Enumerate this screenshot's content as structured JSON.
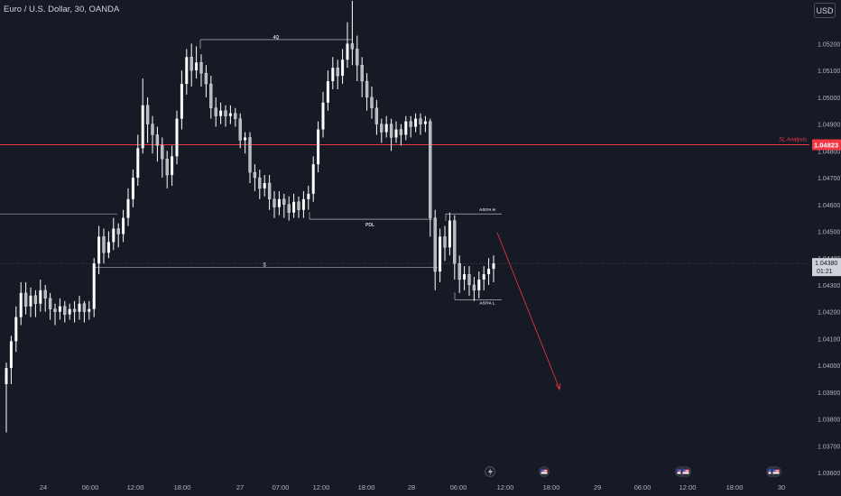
{
  "header": {
    "symbol_title": "Euro / U.S. Dollar, 30, OANDA",
    "currency_button": "USD"
  },
  "colors": {
    "background": "#161a25",
    "candle": "#ffffff",
    "axis_text": "#b2b5be",
    "level_line": "#f23645",
    "annotation_line": "#d1d4dc",
    "price_line": "#5d606b",
    "current_price_box": "#cfd2d9",
    "arrow": "#f23645"
  },
  "chart_data": {
    "type": "candlestick",
    "y_ticks": [
      "1.05200",
      "1.05100",
      "1.05000",
      "1.04900",
      "1.04800",
      "1.04700",
      "1.04600",
      "1.04500",
      "1.04400",
      "1.04300",
      "1.04200",
      "1.04100",
      "1.04000",
      "1.03900",
      "1.03800",
      "1.03700",
      "1.03600"
    ],
    "y_range": [
      1.0359,
      1.0535
    ],
    "x_ticks": [
      "24",
      "06:00",
      "12:00",
      "18:00",
      "27",
      "07:00",
      "12:00",
      "18:00",
      "28",
      "06:00",
      "12:00",
      "18:00",
      "29",
      "06:00",
      "12:00",
      "18:00",
      "30"
    ],
    "current_price": "1.04380",
    "countdown": "01:21",
    "levels": [
      {
        "label": "SL Analysis",
        "price": "1.04823",
        "value": 1.04823
      },
      {
        "label": "4Q",
        "value": 1.05215
      },
      {
        "label": "PDL",
        "value": 1.04545
      },
      {
        "label": "$",
        "value": 1.04365
      },
      {
        "label": "ASIYA H",
        "value": 1.04565
      },
      {
        "label": "ASIYA L",
        "value": 1.04245
      }
    ],
    "candles": [
      [
        1.0393,
        1.0399,
        1.0375,
        1.0401
      ],
      [
        1.0399,
        1.0409,
        1.0393,
        1.0411
      ],
      [
        1.0409,
        1.0418,
        1.0405,
        1.0422
      ],
      [
        1.0418,
        1.0427,
        1.0415,
        1.0431
      ],
      [
        1.0427,
        1.0422,
        1.0419,
        1.0431
      ],
      [
        1.0422,
        1.0426,
        1.0418,
        1.0429
      ],
      [
        1.0426,
        1.0423,
        1.0418,
        1.0428
      ],
      [
        1.0423,
        1.0428,
        1.042,
        1.0432
      ],
      [
        1.0428,
        1.0425,
        1.042,
        1.043
      ],
      [
        1.0425,
        1.0421,
        1.0417,
        1.0427
      ],
      [
        1.0421,
        1.042,
        1.0415,
        1.0423
      ],
      [
        1.042,
        1.0422,
        1.0417,
        1.0425
      ],
      [
        1.0422,
        1.0419,
        1.0416,
        1.0424
      ],
      [
        1.0419,
        1.0421,
        1.0417,
        1.0423
      ],
      [
        1.0421,
        1.042,
        1.0416,
        1.0424
      ],
      [
        1.042,
        1.0423,
        1.0417,
        1.0426
      ],
      [
        1.0423,
        1.042,
        1.0416,
        1.0424
      ],
      [
        1.042,
        1.0421,
        1.0417,
        1.0424
      ],
      [
        1.0421,
        1.0438,
        1.0418,
        1.044
      ],
      [
        1.0438,
        1.0448,
        1.0434,
        1.0452
      ],
      [
        1.0448,
        1.0442,
        1.0438,
        1.0451
      ],
      [
        1.0442,
        1.0446,
        1.044,
        1.045
      ],
      [
        1.0446,
        1.0451,
        1.0443,
        1.0455
      ],
      [
        1.0451,
        1.0449,
        1.0444,
        1.0453
      ],
      [
        1.0449,
        1.0455,
        1.0446,
        1.0458
      ],
      [
        1.0455,
        1.0462,
        1.0452,
        1.0466
      ],
      [
        1.0462,
        1.047,
        1.0459,
        1.0473
      ],
      [
        1.047,
        1.0481,
        1.0467,
        1.0486
      ],
      [
        1.0481,
        1.0497,
        1.0479,
        1.0507
      ],
      [
        1.0497,
        1.049,
        1.0483,
        1.05
      ],
      [
        1.049,
        1.0486,
        1.0479,
        1.0493
      ],
      [
        1.0486,
        1.0482,
        1.0476,
        1.0489
      ],
      [
        1.0482,
        1.0477,
        1.047,
        1.0485
      ],
      [
        1.0477,
        1.0471,
        1.0466,
        1.048
      ],
      [
        1.0471,
        1.0478,
        1.0467,
        1.0482
      ],
      [
        1.0478,
        1.0492,
        1.0475,
        1.0495
      ],
      [
        1.0492,
        1.0505,
        1.0488,
        1.051
      ],
      [
        1.0505,
        1.0515,
        1.0501,
        1.0518
      ],
      [
        1.0515,
        1.051,
        1.0504,
        1.052
      ],
      [
        1.051,
        1.0513,
        1.0507,
        1.0519
      ],
      [
        1.0513,
        1.0509,
        1.0504,
        1.0516
      ],
      [
        1.0509,
        1.0505,
        1.05,
        1.0512
      ],
      [
        1.0505,
        1.0496,
        1.0492,
        1.0508
      ],
      [
        1.0496,
        1.0493,
        1.0489,
        1.05
      ],
      [
        1.0493,
        1.0495,
        1.049,
        1.0498
      ],
      [
        1.0495,
        1.0493,
        1.0489,
        1.0497
      ],
      [
        1.0493,
        1.0494,
        1.049,
        1.0497
      ],
      [
        1.0494,
        1.0492,
        1.0489,
        1.0496
      ],
      [
        1.0492,
        1.0484,
        1.0481,
        1.0494
      ],
      [
        1.0484,
        1.0485,
        1.0479,
        1.0487
      ],
      [
        1.0485,
        1.0472,
        1.0468,
        1.0487
      ],
      [
        1.0472,
        1.047,
        1.0465,
        1.0475
      ],
      [
        1.047,
        1.0466,
        1.0462,
        1.0473
      ],
      [
        1.0466,
        1.0468,
        1.0463,
        1.0471
      ],
      [
        1.0468,
        1.0462,
        1.0458,
        1.0471
      ],
      [
        1.0462,
        1.0459,
        1.0455,
        1.0465
      ],
      [
        1.0459,
        1.0462,
        1.0456,
        1.0465
      ],
      [
        1.0462,
        1.046,
        1.0455,
        1.0464
      ],
      [
        1.046,
        1.0457,
        1.0454,
        1.0463
      ],
      [
        1.0457,
        1.0461,
        1.0455,
        1.0464
      ],
      [
        1.0461,
        1.0458,
        1.0455,
        1.0463
      ],
      [
        1.0458,
        1.0462,
        1.0455,
        1.0465
      ],
      [
        1.0462,
        1.0464,
        1.0458,
        1.0467
      ],
      [
        1.0464,
        1.0475,
        1.0461,
        1.0478
      ],
      [
        1.0475,
        1.0488,
        1.0472,
        1.0491
      ],
      [
        1.0488,
        1.0498,
        1.0485,
        1.0502
      ],
      [
        1.0498,
        1.0506,
        1.0495,
        1.051
      ],
      [
        1.0506,
        1.0511,
        1.0503,
        1.0515
      ],
      [
        1.0511,
        1.0508,
        1.0503,
        1.0514
      ],
      [
        1.0508,
        1.0514,
        1.0505,
        1.0518
      ],
      [
        1.0514,
        1.052,
        1.0511,
        1.0528
      ],
      [
        1.052,
        1.0518,
        1.0512,
        1.0536
      ],
      [
        1.0518,
        1.0512,
        1.0506,
        1.0523
      ],
      [
        1.0512,
        1.0506,
        1.05,
        1.0515
      ],
      [
        1.0506,
        1.05,
        1.0495,
        1.0509
      ],
      [
        1.05,
        1.0496,
        1.0492,
        1.0504
      ],
      [
        1.0496,
        1.049,
        1.0486,
        1.0499
      ],
      [
        1.049,
        1.0487,
        1.0483,
        1.0492
      ],
      [
        1.0487,
        1.049,
        1.0485,
        1.0493
      ],
      [
        1.049,
        1.0485,
        1.048,
        1.0492
      ],
      [
        1.0485,
        1.0488,
        1.0483,
        1.0491
      ],
      [
        1.0488,
        1.0486,
        1.0482,
        1.049
      ],
      [
        1.0486,
        1.0491,
        1.0484,
        1.0493
      ],
      [
        1.0491,
        1.0489,
        1.0485,
        1.0493
      ],
      [
        1.0489,
        1.0492,
        1.0487,
        1.0494
      ],
      [
        1.0492,
        1.049,
        1.0486,
        1.0494
      ],
      [
        1.049,
        1.0491,
        1.0487,
        1.0493
      ],
      [
        1.0491,
        1.0455,
        1.0448,
        1.0492
      ],
      [
        1.0455,
        1.0435,
        1.0428,
        1.0458
      ],
      [
        1.0435,
        1.0448,
        1.0431,
        1.0451
      ],
      [
        1.0448,
        1.0444,
        1.0439,
        1.0452
      ],
      [
        1.0444,
        1.0454,
        1.0441,
        1.0457
      ],
      [
        1.0454,
        1.0438,
        1.0432,
        1.0456
      ],
      [
        1.0438,
        1.0432,
        1.0427,
        1.0441
      ],
      [
        1.0432,
        1.0434,
        1.0428,
        1.0437
      ],
      [
        1.0434,
        1.043,
        1.0426,
        1.0437
      ],
      [
        1.043,
        1.0428,
        1.0424,
        1.0433
      ],
      [
        1.0428,
        1.0432,
        1.0425,
        1.0435
      ],
      [
        1.0432,
        1.0434,
        1.0428,
        1.0437
      ],
      [
        1.0434,
        1.0436,
        1.043,
        1.044
      ],
      [
        1.0436,
        1.0438,
        1.0431,
        1.0441
      ]
    ]
  }
}
